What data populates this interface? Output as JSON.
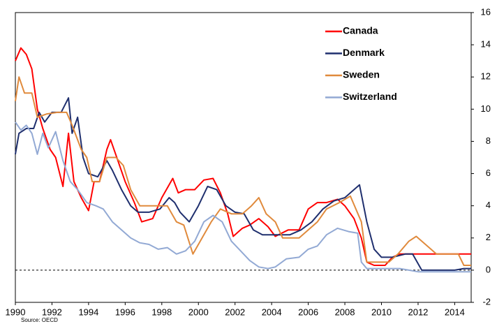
{
  "chart_data": {
    "type": "line",
    "source": "Source: OECD",
    "xlim": [
      1990,
      2014.9
    ],
    "ylim": [
      -2,
      16
    ],
    "xticks": [
      1990,
      1992,
      1994,
      1996,
      1998,
      2000,
      2002,
      2004,
      2006,
      2008,
      2010,
      2012,
      2014
    ],
    "yticks": [
      -2,
      0,
      2,
      4,
      6,
      8,
      10,
      12,
      14,
      16
    ],
    "reference_line": 0,
    "legend": "top-right",
    "series": [
      {
        "name": "Canada",
        "color": "#ff0000",
        "x": [
          1990,
          1990.3,
          1990.6,
          1990.9,
          1991.2,
          1991.5,
          1991.9,
          1992.2,
          1992.6,
          1992.9,
          1993.2,
          1993.6,
          1994.0,
          1994.3,
          1994.6,
          1995.0,
          1995.2,
          1995.6,
          1996.0,
          1996.5,
          1996.9,
          1997.5,
          1998.0,
          1998.6,
          1998.9,
          1999.3,
          1999.8,
          2000.3,
          2000.8,
          2001.2,
          2001.6,
          2001.9,
          2002.4,
          2002.8,
          2003.3,
          2003.8,
          2004.2,
          2004.9,
          2005.5,
          2006.0,
          2006.5,
          2007.0,
          2007.6,
          2008.0,
          2008.5,
          2008.9,
          2009.2,
          2009.6,
          2010.2,
          2010.6,
          2011.0,
          2014.9
        ],
        "values": [
          13,
          13.8,
          13.4,
          12.5,
          10,
          8.8,
          7.5,
          7,
          5.2,
          8.5,
          5.5,
          4.5,
          3.7,
          5.5,
          5.5,
          7.5,
          8.1,
          6.8,
          5.5,
          4.2,
          3.0,
          3.2,
          4.5,
          5.7,
          4.8,
          5.0,
          5.0,
          5.6,
          5.7,
          4.8,
          3.5,
          2.1,
          2.6,
          2.8,
          3.2,
          2.7,
          2.1,
          2.5,
          2.5,
          3.8,
          4.2,
          4.2,
          4.4,
          4.0,
          3.2,
          2.0,
          0.5,
          0.3,
          0.3,
          0.8,
          1.0,
          1.0
        ]
      },
      {
        "name": "Denmark",
        "color": "#1f2f6e",
        "x": [
          1990,
          1990.2,
          1990.6,
          1991.0,
          1991.3,
          1991.6,
          1992.0,
          1992.5,
          1992.9,
          1993.1,
          1993.4,
          1993.7,
          1994.0,
          1994.5,
          1995.0,
          1995.3,
          1995.8,
          1996.3,
          1996.7,
          1997.3,
          1997.9,
          1998.4,
          1998.7,
          1999.0,
          1999.5,
          2000.0,
          2000.5,
          2001.0,
          2001.5,
          2002.0,
          2002.5,
          2003.0,
          2003.5,
          2004.0,
          2005.0,
          2005.6,
          2006.2,
          2006.8,
          2007.4,
          2008.0,
          2008.8,
          2009.2,
          2009.6,
          2010.0,
          2010.6,
          2011.3,
          2011.7,
          2012.2,
          2013.0,
          2014.0,
          2014.5,
          2014.9
        ],
        "values": [
          7.2,
          8.5,
          8.8,
          8.8,
          9.8,
          9.2,
          9.8,
          9.8,
          10.7,
          8.5,
          9.5,
          7.0,
          6.0,
          5.8,
          6.8,
          6.2,
          5.0,
          4.0,
          3.6,
          3.6,
          3.8,
          4.5,
          4.2,
          3.6,
          3.0,
          4.0,
          5.2,
          5.0,
          4.0,
          3.6,
          3.5,
          2.5,
          2.2,
          2.2,
          2.2,
          2.5,
          3.0,
          3.8,
          4.3,
          4.5,
          5.3,
          3.0,
          1.3,
          0.8,
          0.8,
          1.0,
          1.0,
          0.0,
          0.0,
          0.0,
          0.1,
          0.1
        ]
      },
      {
        "name": "Sweden",
        "color": "#e08a3c",
        "x": [
          1990,
          1990.2,
          1990.5,
          1990.9,
          1991.2,
          1991.7,
          1992.3,
          1992.8,
          1993.1,
          1993.6,
          1993.9,
          1994.2,
          1994.6,
          1995.0,
          1995.5,
          1995.9,
          1996.3,
          1996.8,
          1997.3,
          1997.9,
          1998.3,
          1998.8,
          1999.2,
          1999.7,
          2000.2,
          2000.7,
          2001.2,
          2001.8,
          2002.4,
          2002.9,
          2003.3,
          2003.7,
          2004.2,
          2004.6,
          2005.5,
          2006.0,
          2006.5,
          2007.0,
          2007.7,
          2008.3,
          2008.9,
          2009.2,
          2009.6,
          2010.4,
          2010.9,
          2011.5,
          2011.9,
          2012.5,
          2013.0,
          2014.2,
          2014.5,
          2014.9
        ],
        "values": [
          10.5,
          12,
          11,
          11,
          9.5,
          9.7,
          9.8,
          9.8,
          9.0,
          7.5,
          7.0,
          5.5,
          5.5,
          7.0,
          7.0,
          6.5,
          5.0,
          4.0,
          4.0,
          4.0,
          4.0,
          3.0,
          2.8,
          1.0,
          2.0,
          3.0,
          3.8,
          3.5,
          3.5,
          4.0,
          4.5,
          3.5,
          3.0,
          2.0,
          2.0,
          2.5,
          3.0,
          3.8,
          4.2,
          4.6,
          3.0,
          0.5,
          0.5,
          0.5,
          1.0,
          1.8,
          2.1,
          1.5,
          1.0,
          1.0,
          0.3,
          0.3
        ]
      },
      {
        "name": "Switzerland",
        "color": "#92a9d4",
        "x": [
          1990,
          1990.3,
          1990.6,
          1990.9,
          1991.2,
          1991.5,
          1991.8,
          1992.2,
          1992.6,
          1993.0,
          1993.4,
          1993.9,
          1994.4,
          1994.8,
          1995.3,
          1995.8,
          1996.3,
          1996.8,
          1997.3,
          1997.8,
          1998.3,
          1998.8,
          1999.3,
          1999.8,
          2000.3,
          2000.8,
          2001.3,
          2001.8,
          2002.3,
          2002.8,
          2003.3,
          2003.8,
          2004.2,
          2004.8,
          2005.5,
          2006.0,
          2006.5,
          2007.0,
          2007.6,
          2008.2,
          2008.7,
          2008.9,
          2009.2,
          2010.0,
          2011.0,
          2011.5,
          2012.0,
          2013.0,
          2014.9
        ],
        "values": [
          9.2,
          8.7,
          9.0,
          8.5,
          7.2,
          8.5,
          7.6,
          8.6,
          6.8,
          5.5,
          5.0,
          4.2,
          4.0,
          3.8,
          3.0,
          2.5,
          2.0,
          1.7,
          1.6,
          1.3,
          1.4,
          1.0,
          1.2,
          1.8,
          3.0,
          3.4,
          3.0,
          1.8,
          1.2,
          0.6,
          0.2,
          0.1,
          0.2,
          0.7,
          0.8,
          1.3,
          1.5,
          2.2,
          2.6,
          2.4,
          2.3,
          0.5,
          0.1,
          0.1,
          0.1,
          0.0,
          -0.1,
          -0.1,
          -0.1
        ]
      }
    ]
  }
}
